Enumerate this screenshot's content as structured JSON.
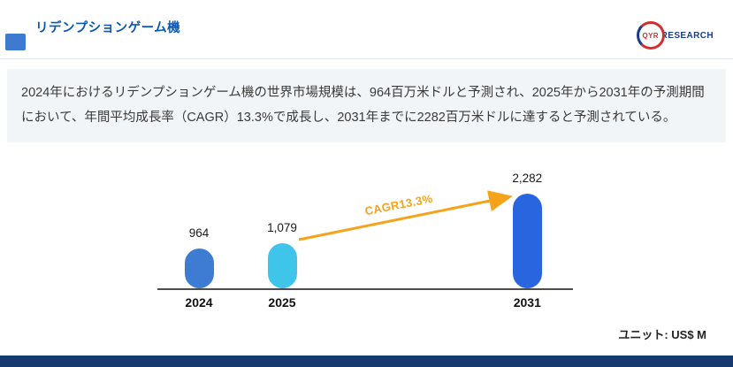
{
  "page": {
    "title": "リデンプションゲーム機",
    "logo": {
      "mark": "QYR",
      "name": "RESEARCH"
    },
    "description": "2024年におけるリデンプションゲーム機の世界市場規模は、964百万米ドルと予測され、2025年から2031年の予測期間において、年間平均成長率（CAGR）13.3%で成長し、2031年までに2282百万米ドルに達すると予測されている。",
    "unit_label": "ユニット: US$ M"
  },
  "chart_data": {
    "type": "bar",
    "categories": [
      "2024",
      "2025",
      "2031"
    ],
    "values": [
      964,
      1079,
      2282
    ],
    "value_labels": [
      "964",
      "1,079",
      "2,282"
    ],
    "bar_colors": [
      "#3d7cd2",
      "#3fc4ea",
      "#2a65e0"
    ],
    "annotation": {
      "text": "CAGR13.3%",
      "color": "#f5a31a",
      "from": "2025",
      "to": "2031"
    },
    "title": "",
    "xlabel": "",
    "ylabel": "",
    "unit": "US$ M",
    "ylim": [
      0,
      2400
    ],
    "grid": false,
    "legend": false
  },
  "colors": {
    "accent_blue": "#3c7bd0",
    "title_blue": "#0d57b8",
    "footer_navy": "#16396f",
    "arrow_orange": "#f5a31a",
    "description_bg": "#f2f5f8"
  }
}
